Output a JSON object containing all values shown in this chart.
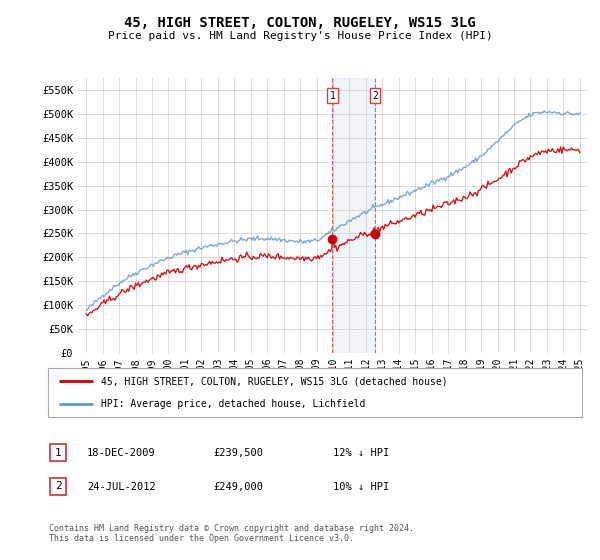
{
  "title": "45, HIGH STREET, COLTON, RUGELEY, WS15 3LG",
  "subtitle": "Price paid vs. HM Land Registry's House Price Index (HPI)",
  "legend_line1": "45, HIGH STREET, COLTON, RUGELEY, WS15 3LG (detached house)",
  "legend_line2": "HPI: Average price, detached house, Lichfield",
  "transaction1_date": "18-DEC-2009",
  "transaction1_price": "£239,500",
  "transaction1_pct": "12% ↓ HPI",
  "transaction2_date": "24-JUL-2012",
  "transaction2_price": "£249,000",
  "transaction2_pct": "10% ↓ HPI",
  "footer": "Contains HM Land Registry data © Crown copyright and database right 2024.\nThis data is licensed under the Open Government Licence v3.0.",
  "red_color": "#cc0000",
  "blue_color": "#6699cc",
  "ylim_min": 0,
  "ylim_max": 575000,
  "yticks": [
    0,
    50000,
    100000,
    150000,
    200000,
    250000,
    300000,
    350000,
    400000,
    450000,
    500000,
    550000
  ],
  "ytick_labels": [
    "£0",
    "£50K",
    "£100K",
    "£150K",
    "£200K",
    "£250K",
    "£300K",
    "£350K",
    "£400K",
    "£450K",
    "£500K",
    "£550K"
  ],
  "xtick_years": [
    1995,
    1996,
    1997,
    1998,
    1999,
    2000,
    2001,
    2002,
    2003,
    2004,
    2005,
    2006,
    2007,
    2008,
    2009,
    2010,
    2011,
    2012,
    2013,
    2014,
    2015,
    2016,
    2017,
    2018,
    2019,
    2020,
    2021,
    2022,
    2023,
    2024,
    2025
  ],
  "marker1_x": 2009.96,
  "marker1_y": 239500,
  "marker2_x": 2012.56,
  "marker2_y": 249000,
  "vline1_x": 2009.96,
  "vline2_x": 2012.56,
  "xlim_min": 1994.5,
  "xlim_max": 2025.5
}
